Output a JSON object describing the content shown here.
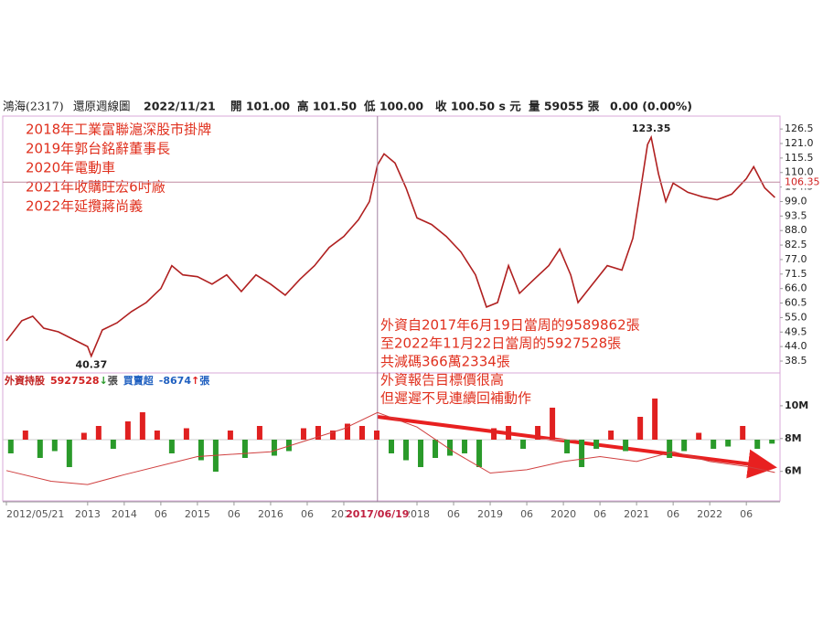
{
  "header": {
    "stock": "鴻海(2317)",
    "chart": "還原週線圖",
    "date": "2022/11/21",
    "open": "開 101.00",
    "high": "高 101.50",
    "low": "低 100.00",
    "close": "收 100.50 s 元",
    "volume": "量 59055 張",
    "change": "0.00 (0.00%)"
  },
  "notes_left": [
    "2018年工業富聯滬深股市掛牌",
    "2019年郭台銘辭董事長",
    "2020年電動車",
    "2021年收購旺宏6吋廠",
    "2022年延攬蔣尚義"
  ],
  "notes_right": [
    "外資自2017年6月19日當周的9589862張",
    "至2022年11月22日當周的5927528張",
    "共減碼366萬2334張",
    "外資報告目標價很高",
    "但遲遲不見連續回補動作"
  ],
  "chart_data": [
    {
      "type": "line",
      "color": "#b02020",
      "x": [
        2012.39,
        2012.6,
        2012.75,
        2012.9,
        2013.1,
        2013.3,
        2013.5,
        2013.55,
        2013.7,
        2013.9,
        2014.1,
        2014.3,
        2014.5,
        2014.65,
        2014.8,
        2015.0,
        2015.2,
        2015.4,
        2015.6,
        2015.8,
        2016.0,
        2016.2,
        2016.4,
        2016.6,
        2016.8,
        2017.0,
        2017.2,
        2017.35,
        2017.46,
        2017.55,
        2017.7,
        2017.85,
        2018.0,
        2018.2,
        2018.4,
        2018.6,
        2018.8,
        2018.95,
        2019.1,
        2019.25,
        2019.4,
        2019.6,
        2019.8,
        2019.95,
        2020.1,
        2020.2,
        2020.4,
        2020.6,
        2020.8,
        2020.95,
        2021.05,
        2021.15,
        2021.2,
        2021.3,
        2021.4,
        2021.5,
        2021.7,
        2021.9,
        2022.1,
        2022.3,
        2022.5,
        2022.6,
        2022.75,
        2022.89
      ],
      "values": [
        46.2,
        53.8,
        55.5,
        51,
        49.6,
        46.8,
        44,
        40.37,
        50.3,
        53,
        57.3,
        60.7,
        66,
        74.7,
        71.2,
        70.5,
        67.7,
        71.2,
        64.9,
        71.2,
        67.7,
        63.5,
        69.5,
        74.7,
        81.6,
        85.8,
        92.1,
        99,
        112.9,
        117.1,
        113.6,
        104.2,
        92.8,
        90.3,
        85.8,
        79.9,
        71.2,
        59,
        60.7,
        74.7,
        64.2,
        69.5,
        74.7,
        81,
        71.2,
        60.7,
        67.7,
        74.7,
        73,
        85.1,
        102.5,
        120.6,
        123.35,
        109.5,
        99,
        106,
        102.5,
        100.8,
        99.7,
        101.8,
        107.7,
        112.2,
        104.2,
        100.5
      ],
      "ylim": [
        34,
        131.4
      ],
      "yticks": [
        126.5,
        {
          "value": 121,
          "label": "121.0"
        },
        115.5,
        {
          "value": 110,
          "label": "110.0"
        },
        104.5,
        {
          "value": 99,
          "label": "99.0"
        },
        93.5,
        {
          "value": 88,
          "label": "88.0"
        },
        82.5,
        {
          "value": 77,
          "label": "77.0"
        },
        71.5,
        {
          "value": 66,
          "label": "66.0"
        },
        60.5,
        {
          "value": 55,
          "label": "55.0"
        },
        49.5,
        {
          "value": 44,
          "label": "44.0"
        },
        38.5
      ],
      "xlim": [
        2012.34,
        2022.96
      ],
      "xticks": [
        {
          "value": 2012.39,
          "label": "2012/05/21"
        },
        {
          "value": 2013.5,
          "label": "2013"
        },
        2014,
        {
          "value": 2014.5,
          "label": "06"
        },
        2015,
        {
          "value": 2015.5,
          "label": "06"
        },
        2016,
        {
          "value": 2016.5,
          "label": "06"
        },
        2017,
        2018,
        {
          "value": 2018.5,
          "label": "06"
        },
        2019,
        {
          "value": 2019.5,
          "label": "06"
        },
        2020,
        {
          "value": 2020.5,
          "label": "06"
        },
        2021,
        {
          "value": 2021.5,
          "label": "06"
        },
        2022,
        {
          "value": 2022.5,
          "label": "06"
        }
      ],
      "cursor": {
        "x": 2017.46,
        "x_label": "2017/06/19",
        "y": 106.35
      },
      "annotations": [
        {
          "x": 2021.2,
          "value": 123.35
        },
        {
          "x": 2013.55,
          "value": 40.37
        }
      ]
    },
    {
      "type": "bar_line",
      "color": "#d04040",
      "legend": {
        "holdings_name": "外資持股",
        "holdings": 5927528,
        "holdings_arrow": "↓",
        "unit": "張",
        "net_name": "買賣超",
        "net": -8674,
        "net_arrow": "↑"
      },
      "x": [
        2012.39,
        2013,
        2013.5,
        2014,
        2015,
        2016,
        2017,
        2017.46,
        2018,
        2018.5,
        2019,
        2019.5,
        2020,
        2020.5,
        2021,
        2021.5,
        2022,
        2022.5,
        2022.89
      ],
      "values": [
        6.05,
        5.4,
        5.2,
        5.8,
        6.9,
        7.2,
        8.6,
        9.59,
        8.7,
        7.2,
        5.9,
        6.1,
        6.6,
        6.9,
        6.6,
        7.2,
        6.6,
        6.3,
        5.93
      ],
      "ylim": [
        4.2,
        12
      ],
      "yticks": [
        {
          "value": 10,
          "label": "10M"
        },
        {
          "value": 8,
          "label": "8M"
        },
        {
          "value": 6,
          "label": "6M"
        }
      ],
      "bars": {
        "x": [
          2012.45,
          2012.65,
          2012.85,
          2013.05,
          2013.25,
          2013.45,
          2013.65,
          2013.85,
          2014.05,
          2014.25,
          2014.45,
          2014.65,
          2014.85,
          2015.05,
          2015.25,
          2015.45,
          2015.65,
          2015.85,
          2016.05,
          2016.25,
          2016.45,
          2016.65,
          2016.85,
          2017.05,
          2017.25,
          2017.45,
          2017.65,
          2017.85,
          2018.05,
          2018.25,
          2018.45,
          2018.65,
          2018.85,
          2019.05,
          2019.25,
          2019.45,
          2019.65,
          2019.85,
          2020.05,
          2020.25,
          2020.45,
          2020.65,
          2020.85,
          2021.05,
          2021.25,
          2021.45,
          2021.65,
          2021.85,
          2022.05,
          2022.25,
          2022.45,
          2022.65,
          2022.85
        ],
        "values": [
          -30000,
          20000,
          -40000,
          -25000,
          -60000,
          15000,
          30000,
          -20000,
          40000,
          60000,
          20000,
          -30000,
          25000,
          -45000,
          -70000,
          20000,
          -40000,
          30000,
          -35000,
          -25000,
          25000,
          30000,
          20000,
          35000,
          30000,
          20000,
          -30000,
          -45000,
          -60000,
          -40000,
          -35000,
          -30000,
          -60000,
          25000,
          30000,
          -20000,
          30000,
          70000,
          -30000,
          -60000,
          -20000,
          20000,
          -25000,
          50000,
          90000,
          -40000,
          -25000,
          15000,
          -20000,
          -15000,
          30000,
          -20000,
          -8674
        ],
        "up_color": "#e02020",
        "down_color": "#2a9a2a"
      }
    }
  ]
}
